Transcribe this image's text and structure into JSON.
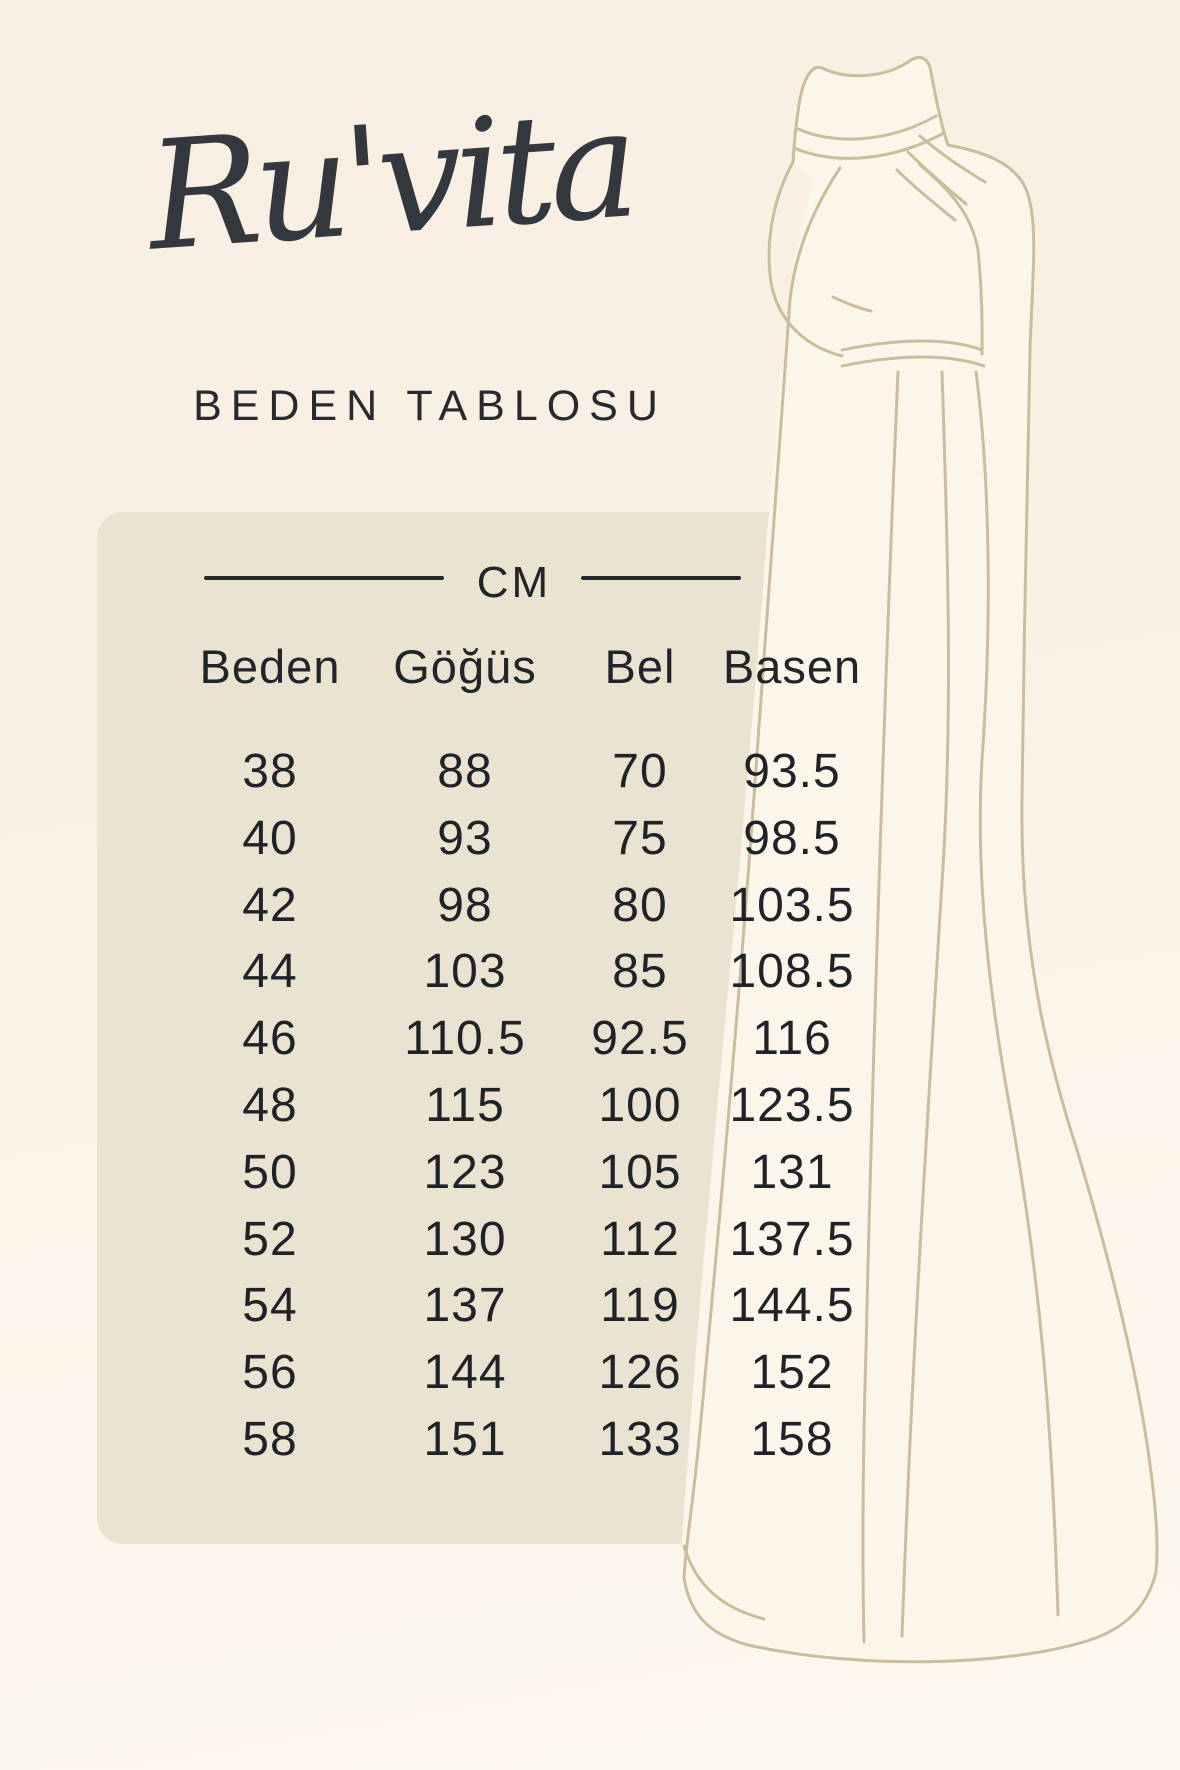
{
  "brand": {
    "logo": "Ru'vita",
    "subtitle": "BEDEN TABLOSU"
  },
  "size_chart": {
    "unit_label": "CM",
    "columns": [
      "Beden",
      "Göğüs",
      "Bel",
      "Basen"
    ],
    "rows": [
      [
        "38",
        "88",
        "70",
        "93.5"
      ],
      [
        "40",
        "93",
        "75",
        "98.5"
      ],
      [
        "42",
        "98",
        "80",
        "103.5"
      ],
      [
        "44",
        "103",
        "85",
        "108.5"
      ],
      [
        "46",
        "110.5",
        "92.5",
        "116"
      ],
      [
        "48",
        "115",
        "100",
        "123.5"
      ],
      [
        "50",
        "123",
        "105",
        "131"
      ],
      [
        "52",
        "130",
        "112",
        "137.5"
      ],
      [
        "54",
        "137",
        "119",
        "144.5"
      ],
      [
        "56",
        "144",
        "126",
        "152"
      ],
      [
        "58",
        "151",
        "133",
        "158"
      ]
    ]
  },
  "illustration": {
    "description": "line drawing of a long halter-neck gown with turtleneck collar, belted waist and flowing floor-length skirt"
  },
  "colors": {
    "page_background": "#faf1e5",
    "card_background": "#eae3d2",
    "dress_fill": "#fcf6ea",
    "dress_line": "#c9bd9c",
    "text": "#1f2226"
  }
}
